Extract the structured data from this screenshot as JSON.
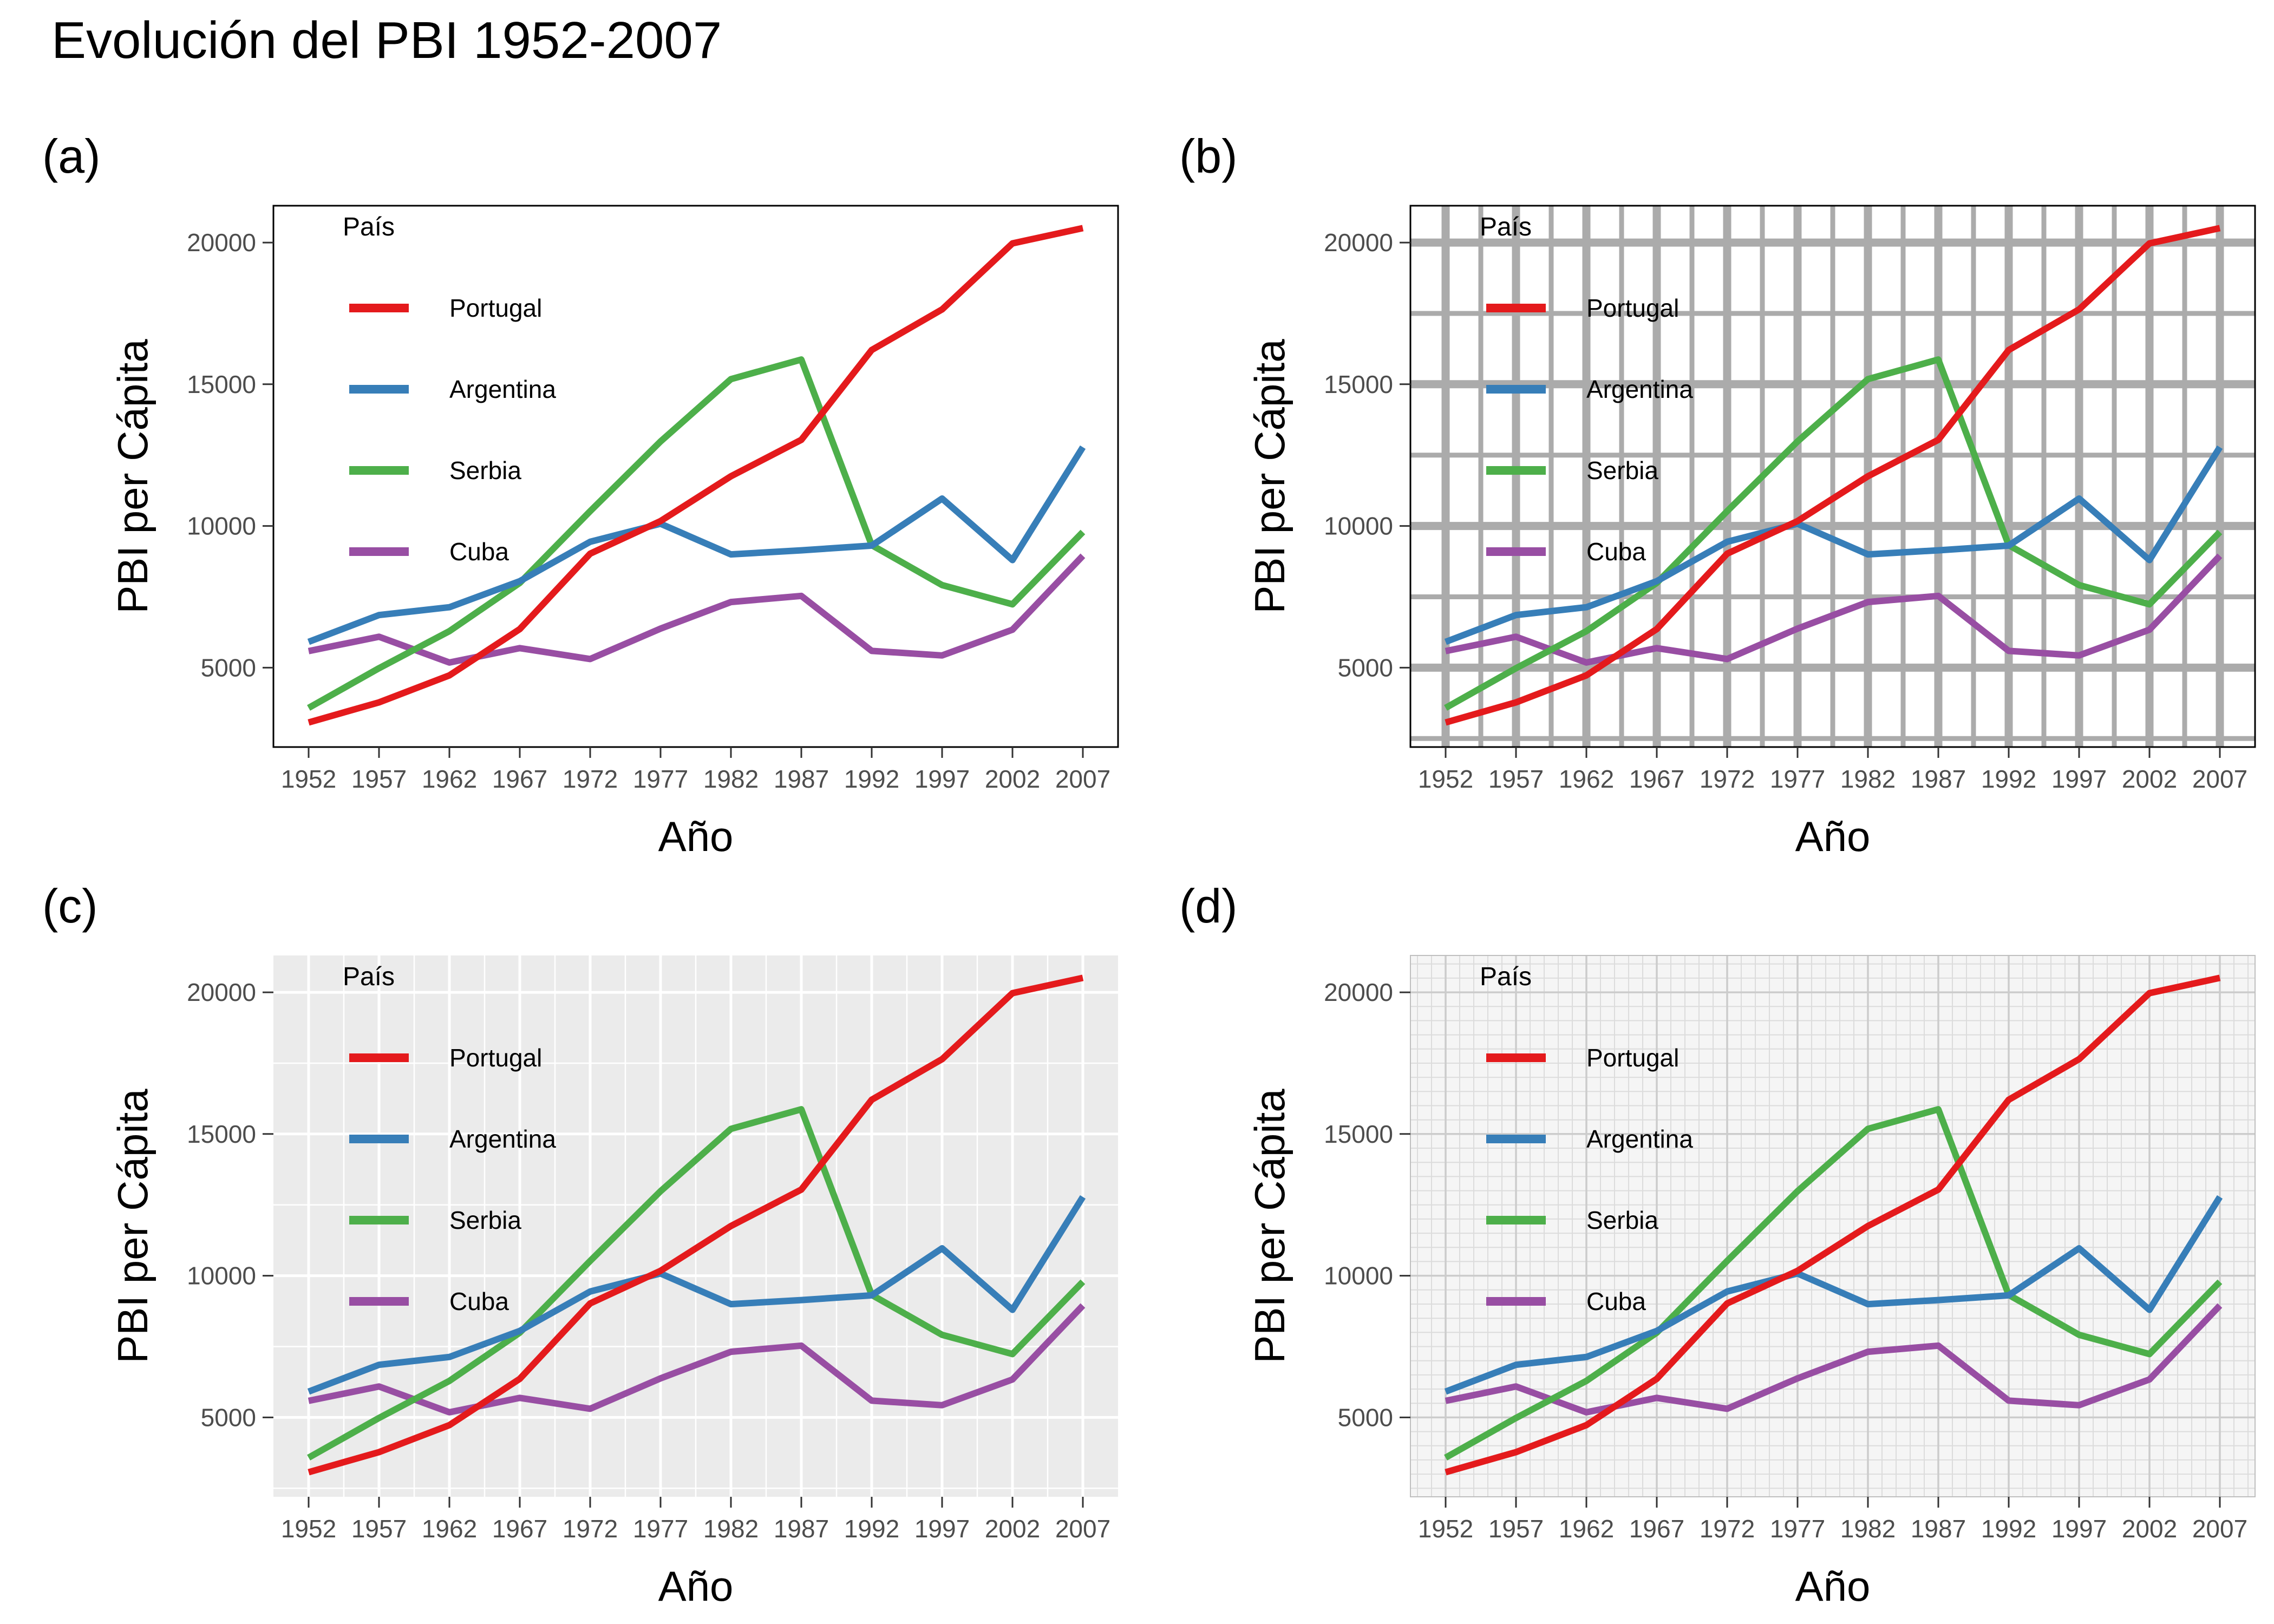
{
  "page": {
    "title": "Evolución del PBI 1952-2007"
  },
  "panels": [
    {
      "label": "(a)",
      "grid_style": "none"
    },
    {
      "label": "(b)",
      "grid_style": "heavy"
    },
    {
      "label": "(c)",
      "grid_style": "gray"
    },
    {
      "label": "(d)",
      "grid_style": "fine"
    }
  ],
  "chart_data": {
    "type": "line",
    "title": "Evolución del PBI 1952-2007",
    "xlabel": "Año",
    "ylabel": "PBI per Cápita",
    "legend_title": "País",
    "legend_position": "inside-top-left",
    "x": [
      1952,
      1957,
      1962,
      1967,
      1972,
      1977,
      1982,
      1987,
      1992,
      1997,
      2002,
      2007
    ],
    "x_ticks": [
      1952,
      1957,
      1962,
      1967,
      1972,
      1977,
      1982,
      1987,
      1992,
      1997,
      2002,
      2007
    ],
    "y_ticks": [
      5000,
      10000,
      15000,
      20000
    ],
    "xlim": [
      1949.5,
      2009.5
    ],
    "ylim": [
      2200,
      21300
    ],
    "series": [
      {
        "name": "Portugal",
        "color": "#E41A1C",
        "values": [
          3068,
          3775,
          4728,
          6362,
          9022,
          10172,
          11754,
          13039,
          16207,
          17641,
          19971,
          20510
        ]
      },
      {
        "name": "Argentina",
        "color": "#377EB8",
        "values": [
          5911,
          6857,
          7133,
          8053,
          9443,
          10079,
          8998,
          9140,
          9308,
          10967,
          8798,
          12779
        ]
      },
      {
        "name": "Serbia",
        "color": "#4DAF4A",
        "values": [
          3581,
          4981,
          6290,
          7992,
          10522,
          12981,
          15181,
          15871,
          9325,
          7914,
          7236,
          9787
        ]
      },
      {
        "name": "Cuba",
        "color": "#984EA3",
        "values": [
          5587,
          6092,
          5181,
          5690,
          5305,
          6380,
          7317,
          7533,
          5593,
          5432,
          6341,
          8948
        ]
      }
    ]
  }
}
